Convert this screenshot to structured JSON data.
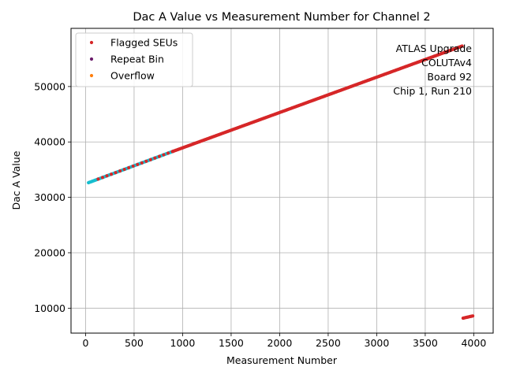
{
  "chart_data": {
    "type": "scatter",
    "title": "Dac A Value vs Measurement Number for Channel 2",
    "xlabel": "Measurement Number",
    "ylabel": "Dac A Value",
    "xlim": [
      -150,
      4200
    ],
    "ylim": [
      5500,
      60500
    ],
    "xticks": [
      0,
      500,
      1000,
      1500,
      2000,
      2500,
      3000,
      3500,
      4000
    ],
    "yticks": [
      10000,
      20000,
      30000,
      40000,
      50000
    ],
    "grid": true,
    "legend_position": "top-left",
    "legend": [
      {
        "label": "Flagged SEUs",
        "color": "#d62728"
      },
      {
        "label": "Repeat Bin",
        "color": "#6a1b6a"
      },
      {
        "label": "Overflow",
        "color": "#ff7f0e"
      }
    ],
    "annotation": [
      "ATLAS Upgrade",
      "COLUTAv4",
      "Board 92",
      "Chip 1, Run 210"
    ],
    "series": [
      {
        "color": "#17becf",
        "segments": [
          {
            "x_start": 30,
            "x_end": 900,
            "step": 10,
            "y_start": 32650,
            "y_end": 38300
          }
        ]
      },
      {
        "color": "#d62728",
        "segments": [
          {
            "x_start": 130,
            "x_end": 900,
            "step": 45,
            "y_start": 33300,
            "y_end": 38300
          },
          {
            "x_start": 900,
            "x_end": 3880,
            "step": 10,
            "y_start": 38300,
            "y_end": 57300
          },
          {
            "x_start": 3890,
            "x_end": 3990,
            "step": 10,
            "y_start": 8200,
            "y_end": 8600
          }
        ]
      }
    ]
  }
}
